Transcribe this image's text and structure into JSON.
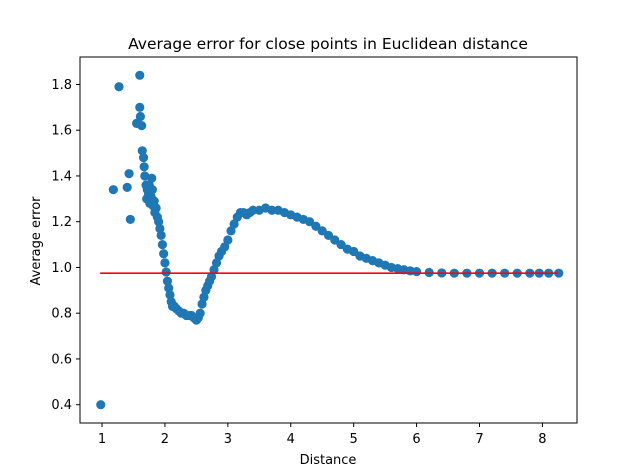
{
  "chart_data": {
    "type": "scatter",
    "title": "Average error for close points in Euclidean distance",
    "xlabel": "Distance",
    "ylabel": "Average error",
    "xlim": [
      0.65,
      8.55
    ],
    "ylim": [
      0.32,
      1.92
    ],
    "xticks": [
      1,
      2,
      3,
      4,
      5,
      6,
      7,
      8
    ],
    "xtick_labels": [
      "1",
      "2",
      "3",
      "4",
      "5",
      "6",
      "7",
      "8"
    ],
    "yticks": [
      0.4,
      0.6,
      0.8,
      1.0,
      1.2,
      1.4,
      1.6,
      1.8
    ],
    "ytick_labels": [
      "0.4",
      "0.6",
      "0.8",
      "1.0",
      "1.2",
      "1.4",
      "1.6",
      "1.8"
    ],
    "grid": false,
    "colors": {
      "points": "#1f77b4",
      "reference_line": "#ff0000"
    },
    "series": [
      {
        "type": "scatter",
        "points": [
          [
            0.98,
            0.4
          ],
          [
            1.18,
            1.34
          ],
          [
            1.27,
            1.79
          ],
          [
            1.4,
            1.35
          ],
          [
            1.43,
            1.41
          ],
          [
            1.45,
            1.21
          ],
          [
            1.55,
            1.63
          ],
          [
            1.6,
            1.84
          ],
          [
            1.6,
            1.7
          ],
          [
            1.61,
            1.66
          ],
          [
            1.63,
            1.62
          ],
          [
            1.64,
            1.51
          ],
          [
            1.66,
            1.48
          ],
          [
            1.67,
            1.44
          ],
          [
            1.68,
            1.4
          ],
          [
            1.7,
            1.36
          ],
          [
            1.71,
            1.3
          ],
          [
            1.72,
            1.34
          ],
          [
            1.74,
            1.32
          ],
          [
            1.75,
            1.36
          ],
          [
            1.76,
            1.28
          ],
          [
            1.78,
            1.31
          ],
          [
            1.79,
            1.39
          ],
          [
            1.8,
            1.34
          ],
          [
            1.81,
            1.27
          ],
          [
            1.83,
            1.29
          ],
          [
            1.84,
            1.24
          ],
          [
            1.86,
            1.26
          ],
          [
            1.88,
            1.22
          ],
          [
            1.9,
            1.2
          ],
          [
            1.92,
            1.17
          ],
          [
            1.94,
            1.14
          ],
          [
            1.96,
            1.1
          ],
          [
            1.98,
            1.06
          ],
          [
            2.0,
            1.02
          ],
          [
            2.02,
            0.98
          ],
          [
            2.04,
            0.94
          ],
          [
            2.06,
            0.91
          ],
          [
            2.08,
            0.88
          ],
          [
            2.1,
            0.85
          ],
          [
            2.12,
            0.83
          ],
          [
            2.15,
            0.83
          ],
          [
            2.18,
            0.82
          ],
          [
            2.22,
            0.81
          ],
          [
            2.26,
            0.8
          ],
          [
            2.3,
            0.8
          ],
          [
            2.34,
            0.79
          ],
          [
            2.38,
            0.79
          ],
          [
            2.42,
            0.79
          ],
          [
            2.46,
            0.78
          ],
          [
            2.5,
            0.77
          ],
          [
            2.53,
            0.78
          ],
          [
            2.56,
            0.8
          ],
          [
            2.59,
            0.84
          ],
          [
            2.62,
            0.87
          ],
          [
            2.65,
            0.9
          ],
          [
            2.68,
            0.92
          ],
          [
            2.71,
            0.94
          ],
          [
            2.74,
            0.96
          ],
          [
            2.78,
            0.99
          ],
          [
            2.82,
            1.02
          ],
          [
            2.86,
            1.05
          ],
          [
            2.9,
            1.07
          ],
          [
            2.95,
            1.09
          ],
          [
            3.0,
            1.12
          ],
          [
            3.05,
            1.16
          ],
          [
            3.1,
            1.19
          ],
          [
            3.15,
            1.22
          ],
          [
            3.2,
            1.24
          ],
          [
            3.25,
            1.24
          ],
          [
            3.3,
            1.23
          ],
          [
            3.35,
            1.24
          ],
          [
            3.4,
            1.25
          ],
          [
            3.5,
            1.25
          ],
          [
            3.6,
            1.26
          ],
          [
            3.7,
            1.25
          ],
          [
            3.8,
            1.25
          ],
          [
            3.9,
            1.24
          ],
          [
            4.0,
            1.23
          ],
          [
            4.1,
            1.22
          ],
          [
            4.2,
            1.21
          ],
          [
            4.3,
            1.2
          ],
          [
            4.4,
            1.18
          ],
          [
            4.5,
            1.16
          ],
          [
            4.6,
            1.14
          ],
          [
            4.7,
            1.12
          ],
          [
            4.8,
            1.1
          ],
          [
            4.9,
            1.08
          ],
          [
            5.0,
            1.07
          ],
          [
            5.1,
            1.05
          ],
          [
            5.2,
            1.04
          ],
          [
            5.3,
            1.03
          ],
          [
            5.4,
            1.02
          ],
          [
            5.5,
            1.01
          ],
          [
            5.6,
            1.0
          ],
          [
            5.7,
            0.995
          ],
          [
            5.8,
            0.99
          ],
          [
            5.9,
            0.985
          ],
          [
            6.0,
            0.982
          ],
          [
            6.2,
            0.978
          ],
          [
            6.4,
            0.976
          ],
          [
            6.6,
            0.975
          ],
          [
            6.8,
            0.975
          ],
          [
            7.0,
            0.975
          ],
          [
            7.2,
            0.975
          ],
          [
            7.4,
            0.975
          ],
          [
            7.6,
            0.975
          ],
          [
            7.8,
            0.975
          ],
          [
            7.95,
            0.975
          ],
          [
            8.1,
            0.975
          ],
          [
            8.26,
            0.975
          ]
        ]
      },
      {
        "type": "line",
        "x": [
          0.97,
          8.25
        ],
        "y": [
          0.975,
          0.975
        ]
      }
    ]
  }
}
